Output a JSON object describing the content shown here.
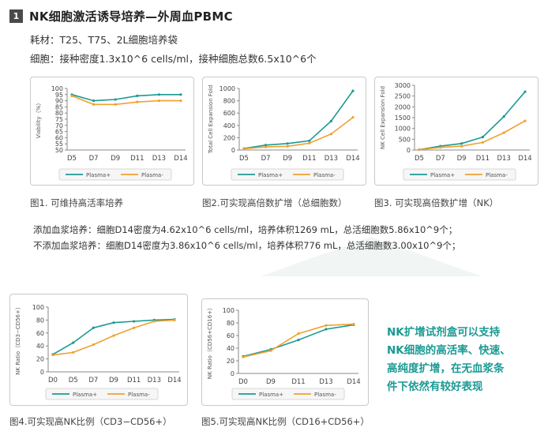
{
  "header": {
    "section_number": "1",
    "title": "NK细胞激活诱导培养—外周血PBMC"
  },
  "info": {
    "consumables": "耗材：T25、T75、2L细胞培养袋",
    "cells": "细胞：接种密度1.3x10^6 cells/ml，接种细胞总数6.5x10^6个"
  },
  "legend": {
    "plus": "Plasma+",
    "minus": "Plasma-"
  },
  "colors": {
    "plus": "#1a9a93",
    "minus": "#f0a030",
    "axis": "#888888",
    "grid": "#dddddd"
  },
  "captions": {
    "fig1": "图1. 可维持高活率培养",
    "fig2": "图2.可实现高倍数扩增（总细胞数）",
    "fig3": "图3. 可实现高倍数扩增（NK）",
    "fig4": "图4.可实现高NK比例（CD3−CD56+）",
    "fig5": "图5.可实现高NK比例（CD16+CD56+）"
  },
  "culture": {
    "plus": "添加血浆培养：细胞D14密度为4.62x10^6 cells/ml，培养体积1269 mL，总活细胞数5.86x10^9个；",
    "minus": "不添加血浆培养：细胞D14密度为3.86x10^6 cells/ml，培养体积776 mL，总活细胞数3.00x10^9个；"
  },
  "summary": [
    "NK扩增试剂盒可以支持",
    "NK细胞的高活率、快速、",
    "高纯度扩增，在无血浆条",
    "件下依然有较好表现"
  ],
  "chart_data": [
    {
      "id": "fig1",
      "type": "line",
      "categories": [
        "D5",
        "D7",
        "D9",
        "D11",
        "D13",
        "D14"
      ],
      "ylabel": "Viability（%）",
      "ylim": [
        50,
        100
      ],
      "yticks": [
        "50",
        "55",
        "60",
        "65",
        "70",
        "75",
        "80",
        "85",
        "90",
        "95",
        "100"
      ],
      "series": [
        {
          "name": "Plasma+",
          "values": [
            95,
            90,
            91,
            94,
            95,
            95
          ]
        },
        {
          "name": "Plasma-",
          "values": [
            94,
            87,
            87,
            89,
            90,
            90
          ]
        }
      ]
    },
    {
      "id": "fig2",
      "type": "line",
      "categories": [
        "D5",
        "D7",
        "D9",
        "D11",
        "D13",
        "D14"
      ],
      "ylabel": "Total Cell Expansion Fold",
      "ylim": [
        0,
        1000
      ],
      "yticks": [
        "0",
        "200",
        "400",
        "600",
        "800",
        "1000"
      ],
      "series": [
        {
          "name": "Plasma+",
          "values": [
            25,
            80,
            105,
            150,
            470,
            960
          ]
        },
        {
          "name": "Plasma-",
          "values": [
            20,
            50,
            60,
            110,
            260,
            530
          ]
        }
      ]
    },
    {
      "id": "fig3",
      "type": "line",
      "categories": [
        "D5",
        "D7",
        "D9",
        "D11",
        "D13",
        "D14"
      ],
      "ylabel": "NK Cell Expansion Fold",
      "ylim": [
        0,
        3000
      ],
      "yticks": [
        "0",
        "500",
        "1000",
        "1500",
        "2000",
        "2500",
        "3000"
      ],
      "series": [
        {
          "name": "Plasma+",
          "values": [
            20,
            180,
            300,
            600,
            1550,
            2700
          ]
        },
        {
          "name": "Plasma-",
          "values": [
            15,
            120,
            180,
            350,
            800,
            1350
          ]
        }
      ]
    },
    {
      "id": "fig4",
      "type": "line",
      "categories": [
        "D0",
        "D5",
        "D7",
        "D9",
        "D11",
        "D13",
        "D14"
      ],
      "ylabel": "NK Ratio（CD3−CD56+）",
      "ylim": [
        0,
        100
      ],
      "yticks": [
        "0",
        "20",
        "40",
        "60",
        "80",
        "100"
      ],
      "series": [
        {
          "name": "Plasma+",
          "values": [
            27,
            45,
            68,
            76,
            78,
            80,
            81
          ]
        },
        {
          "name": "Plasma-",
          "values": [
            26,
            30,
            42,
            56,
            68,
            78,
            80
          ]
        }
      ]
    },
    {
      "id": "fig5",
      "type": "line",
      "categories": [
        "D0",
        "D9",
        "D11",
        "D13",
        "D14"
      ],
      "ylabel": "NK Ratio（CD56+CD16+）",
      "ylim": [
        0,
        100
      ],
      "yticks": [
        "0",
        "20",
        "40",
        "60",
        "80",
        "100"
      ],
      "series": [
        {
          "name": "Plasma+",
          "values": [
            27,
            38,
            53,
            70,
            77
          ]
        },
        {
          "name": "Plasma-",
          "values": [
            26,
            36,
            63,
            76,
            78
          ]
        }
      ]
    }
  ]
}
